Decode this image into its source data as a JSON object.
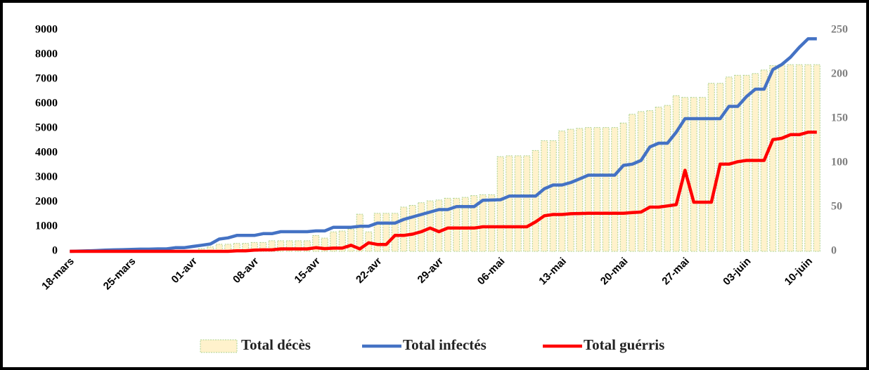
{
  "chart_data": {
    "type": "combo",
    "categories": [
      "18-mars",
      null,
      null,
      null,
      null,
      null,
      null,
      "25-mars",
      null,
      null,
      null,
      null,
      null,
      null,
      "01-avr",
      null,
      null,
      null,
      null,
      null,
      null,
      "08-avr",
      null,
      null,
      null,
      null,
      null,
      null,
      "15-avr",
      null,
      null,
      null,
      null,
      null,
      null,
      "22-avr",
      null,
      null,
      null,
      null,
      null,
      null,
      "29-avr",
      null,
      null,
      null,
      null,
      null,
      null,
      "06-mai",
      null,
      null,
      null,
      null,
      null,
      null,
      "13-mai",
      null,
      null,
      null,
      null,
      null,
      null,
      "20-mai",
      null,
      null,
      null,
      null,
      null,
      null,
      "27-mai",
      null,
      null,
      null,
      null,
      null,
      null,
      "03-juin",
      null,
      null,
      null,
      null,
      null,
      null,
      "10-juin",
      null
    ],
    "series": [
      {
        "name": "Total décès",
        "type": "bar",
        "axis": "y2",
        "color": "#fff2cc",
        "edge_color": "#a9d18e",
        "values": [
          0,
          0,
          0,
          0,
          0,
          0,
          0,
          0,
          0,
          0,
          0,
          0,
          0,
          0,
          1,
          3,
          5,
          8,
          8,
          9,
          9,
          10,
          10,
          12,
          12,
          12,
          12,
          12,
          18,
          15,
          22,
          23,
          25,
          42,
          22,
          43,
          43,
          43,
          50,
          52,
          55,
          57,
          58,
          60,
          60,
          61,
          63,
          64,
          64,
          107,
          108,
          108,
          108,
          114,
          125,
          125,
          136,
          138,
          139,
          140,
          140,
          140,
          140,
          145,
          155,
          158,
          159,
          163,
          165,
          176,
          174,
          174,
          174,
          190,
          190,
          197,
          199,
          199,
          201,
          205,
          210,
          211,
          211,
          211,
          211,
          211
        ]
      },
      {
        "name": "Total infectés",
        "type": "line",
        "color": "#4472c4",
        "values": [
          0,
          10,
          20,
          30,
          50,
          60,
          70,
          80,
          90,
          90,
          100,
          100,
          150,
          150,
          200,
          250,
          300,
          500,
          550,
          650,
          650,
          650,
          720,
          720,
          800,
          800,
          800,
          800,
          830,
          830,
          980,
          980,
          980,
          1020,
          1020,
          1150,
          1150,
          1150,
          1300,
          1400,
          1500,
          1600,
          1700,
          1700,
          1820,
          1820,
          1820,
          2080,
          2090,
          2100,
          2250,
          2250,
          2250,
          2250,
          2550,
          2700,
          2700,
          2800,
          2950,
          3100,
          3100,
          3100,
          3100,
          3500,
          3550,
          3700,
          4250,
          4400,
          4400,
          4850,
          5400,
          5400,
          5400,
          5400,
          5400,
          5900,
          5900,
          6300,
          6600,
          6600,
          7400,
          7600,
          7900,
          8300,
          8650,
          8650
        ]
      },
      {
        "name": "Total guérris",
        "type": "line",
        "color": "#ff0000",
        "values": [
          0,
          0,
          0,
          0,
          0,
          0,
          0,
          0,
          0,
          0,
          0,
          0,
          0,
          0,
          0,
          0,
          0,
          0,
          0,
          20,
          20,
          50,
          60,
          60,
          100,
          100,
          100,
          100,
          150,
          110,
          130,
          130,
          250,
          100,
          350,
          280,
          280,
          650,
          650,
          700,
          800,
          950,
          800,
          950,
          950,
          950,
          950,
          1000,
          1000,
          1000,
          1000,
          1000,
          1000,
          1200,
          1450,
          1500,
          1500,
          1530,
          1540,
          1550,
          1550,
          1550,
          1550,
          1550,
          1580,
          1600,
          1800,
          1800,
          1850,
          1900,
          3300,
          2000,
          2000,
          2000,
          3550,
          3550,
          3650,
          3700,
          3700,
          3700,
          4550,
          4600,
          4750,
          4750,
          4850,
          4850
        ]
      }
    ],
    "ylim": [
      0,
      9000
    ],
    "yticks": [
      0,
      1000,
      2000,
      3000,
      4000,
      5000,
      6000,
      7000,
      8000,
      9000
    ],
    "y2lim": [
      0,
      250
    ],
    "y2ticks": [
      0,
      50,
      100,
      150,
      200,
      250
    ],
    "legend": "bottom"
  }
}
